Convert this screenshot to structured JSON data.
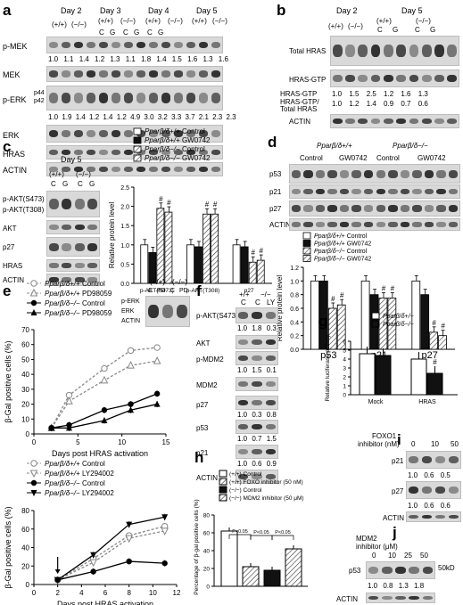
{
  "panels": {
    "a": {
      "label": "a",
      "days": [
        "Day 2",
        "Day 3",
        "Day 4",
        "Day 5"
      ],
      "genotypes": [
        "(+/+)",
        "(−/−)",
        "(+/+)",
        "(−/−)",
        "(+/+)",
        "(−/−)",
        "(+/+)",
        "(−/−)"
      ],
      "lanes": [
        "C",
        "G",
        "C",
        "G",
        "C",
        "G"
      ],
      "rows": [
        "p-MEK",
        "MEK",
        "p-ERK",
        "ERK",
        "HRAS",
        "ACTIN"
      ],
      "perk_sub": [
        "p44",
        "p42"
      ],
      "mek_vals": [
        "1.0",
        "1.1",
        "1.4",
        "1.2",
        "1.3",
        "1.1",
        "1.8",
        "1.4",
        "1.5",
        "1.6",
        "1.3",
        "1.6"
      ],
      "erk_vals": [
        "1.0",
        "1.9",
        "1.4",
        "1.2",
        "1.4",
        "1.2",
        "4.9",
        "3.0",
        "3.2",
        "3.3",
        "3.7",
        "2.1",
        "2.3",
        "2.3"
      ]
    },
    "b": {
      "label": "b",
      "days": [
        "Day 2",
        "Day 5"
      ],
      "genotypes": [
        "(+/+)",
        "(−/−)",
        "(+/+)",
        "(−/−)"
      ],
      "lanes": [
        "C",
        "G",
        "C",
        "G"
      ],
      "rows": [
        "Total HRAS",
        "HRAS-GTP",
        "ACTIN"
      ],
      "r1_label": "HRAS-GTP",
      "r1_vals": [
        "1.0",
        "1.5",
        "2.5",
        "1.2",
        "1.6",
        "1.3"
      ],
      "r2_label": "HRAS-GTP/",
      "r2_label2": "Total HRAS",
      "r2_vals": [
        "1.0",
        "1.2",
        "1.4",
        "0.9",
        "0.7",
        "0.6"
      ]
    },
    "c": {
      "label": "c",
      "day": "Day 5",
      "genotypes": [
        "(+/+)",
        "(−/−)"
      ],
      "lanes": [
        "C",
        "G",
        "C",
        "G"
      ],
      "rows": [
        "p-AKT(S473)",
        "p-AKT(T308)",
        "AKT",
        "p27",
        "HRAS",
        "ACTIN"
      ],
      "legend": [
        {
          "g": "Pparβ/δ+/+",
          "t": "Control"
        },
        {
          "g": "Pparβ/δ+/+",
          "t": "GW0742"
        },
        {
          "g": "Pparβ/δ−/−",
          "t": "Control"
        },
        {
          "g": "Pparβ/δ−/−",
          "t": "GW0742"
        }
      ],
      "ylabel": "Relative protein level",
      "groups": [
        "p-AKT(S473)",
        "p-AKT(T308)",
        "p27"
      ],
      "mark": "#"
    },
    "d": {
      "label": "d",
      "geno1": "Pparβ/δ+/+",
      "geno2": "Pparβ/δ−/−",
      "conds": [
        "Control",
        "GW0742",
        "Control",
        "GW0742"
      ],
      "rows": [
        "p53",
        "p21",
        "p27",
        "ACTIN"
      ],
      "legend": [
        {
          "g": "Pparβ/δ+/+",
          "t": "Control"
        },
        {
          "g": "Pparβ/δ+/+",
          "t": "GW0742"
        },
        {
          "g": "Pparβ/δ−/−",
          "t": "Control"
        },
        {
          "g": "Pparβ/δ−/−",
          "t": "GW0742"
        }
      ],
      "ylabel": "Relative protein level",
      "groups": [
        "p53",
        "p21",
        "p27"
      ],
      "mark": "#"
    },
    "e": {
      "label": "e",
      "ylabel": "β-Gal positive cells (%)",
      "xlabel": "Days post HRAS activation",
      "legend1": [
        {
          "g": "Pparβ/δ+/+",
          "t": "Control"
        },
        {
          "g": "Pparβ/δ+/+",
          "t": "PD98059"
        },
        {
          "g": "Pparβ/δ−/−",
          "t": "Control"
        },
        {
          "g": "Pparβ/δ−/−",
          "t": "PD98059"
        }
      ],
      "legend2": [
        {
          "g": "Pparβ/δ+/+",
          "t": "Control"
        },
        {
          "g": "Pparβ/δ+/+",
          "t": "LY294002"
        },
        {
          "g": "Pparβ/δ−/−",
          "t": "Control"
        },
        {
          "g": "Pparβ/δ−/−",
          "t": "LY294002"
        }
      ],
      "inset": {
        "genos": [
          "(+/+)",
          "(−/−)"
        ],
        "lanes": [
          "C",
          "PD",
          "C",
          "PD"
        ],
        "rows": [
          "p-ERK",
          "ERK",
          "ACTIN"
        ]
      }
    },
    "f": {
      "label": "f",
      "genos": [
        "+/+",
        "−/−"
      ],
      "lanes": [
        "C",
        "C",
        "LY"
      ],
      "rows": [
        "p-AKT(S473)",
        "AKT",
        "p-MDM2",
        "MDM2",
        "p27",
        "p53",
        "p21",
        "ACTIN"
      ],
      "v1": [
        "1.0",
        "1.8",
        "0.3"
      ],
      "v2": [
        "1.0",
        "1.5",
        "0.1"
      ],
      "v3": [
        "1.0",
        "0.3",
        "0.8"
      ],
      "v4": [
        "1.0",
        "0.7",
        "1.5"
      ],
      "v5": [
        "1.0",
        "0.6",
        "0.9"
      ]
    },
    "g": {
      "label": "g",
      "ylabel": "Relative luciferase activity",
      "legend": [
        "Pparβ/δ+/+",
        "Pparβ/δ−/−"
      ],
      "groups": [
        "Mock",
        "HRAS"
      ],
      "mark": "#"
    },
    "h": {
      "label": "h",
      "ylabel": "Percentage of β-gal positive cells (%)",
      "legend": [
        "(+/+) Control",
        "(+/+) FOXO inhibitor (50 nM)",
        "(−/−) Control",
        "(−/−) MDM2 inhibitor (50 μM)"
      ],
      "p": [
        "P<0.05",
        "P<0.05",
        "P<0.05"
      ]
    },
    "i": {
      "label": "i",
      "title": "FOXO1",
      "title2": "inhibitor (nM)",
      "doses": [
        "0",
        "10",
        "50"
      ],
      "rows": [
        "p21",
        "p27",
        "ACTIN"
      ],
      "v1": [
        "1.0",
        "0.6",
        "0.5"
      ],
      "v2": [
        "1.0",
        "0.6",
        "0.6"
      ]
    },
    "j": {
      "label": "j",
      "title": "MDM2",
      "title2": "inhibitor (μM)",
      "doses": [
        "0",
        "10",
        "25",
        "50"
      ],
      "rows": [
        "p53",
        "ACTIN"
      ],
      "v1": [
        "1.0",
        "0.8",
        "1.3",
        "1.8"
      ],
      "kd": "50kD"
    }
  },
  "chart_data": [
    {
      "type": "bar",
      "panel": "c",
      "categories": [
        "p-AKT(S473)",
        "p-AKT(T308)",
        "p27"
      ],
      "series": [
        {
          "name": "Pparβ/δ+/+ Control",
          "values": [
            1.0,
            1.0,
            1.0
          ]
        },
        {
          "name": "Pparβ/δ+/+ GW0742",
          "values": [
            0.8,
            0.95,
            0.95
          ]
        },
        {
          "name": "Pparβ/δ−/− Control",
          "values": [
            1.95,
            1.8,
            0.55
          ]
        },
        {
          "name": "Pparβ/δ−/− GW0742",
          "values": [
            1.85,
            1.8,
            0.6
          ]
        }
      ],
      "ylim": [
        0,
        2.5
      ],
      "yticks": [
        0,
        0.5,
        1.0,
        1.5,
        2.0,
        2.5
      ]
    },
    {
      "type": "bar",
      "panel": "d",
      "categories": [
        "p53",
        "p21",
        "p27"
      ],
      "series": [
        {
          "name": "Pparβ/δ+/+ Control",
          "values": [
            1.0,
            1.0,
            1.0
          ]
        },
        {
          "name": "Pparβ/δ+/+ GW0742",
          "values": [
            1.0,
            0.8,
            0.8
          ]
        },
        {
          "name": "Pparβ/δ−/− Control",
          "values": [
            0.6,
            0.75,
            0.25
          ]
        },
        {
          "name": "Pparβ/δ−/− GW0742",
          "values": [
            0.65,
            0.75,
            0.2
          ]
        }
      ],
      "ylim": [
        0,
        1.2
      ],
      "yticks": [
        0,
        0.2,
        0.4,
        0.6,
        0.8,
        1.0,
        1.2
      ]
    },
    {
      "type": "line",
      "panel": "e-top",
      "x": [
        2,
        4,
        8,
        11,
        14
      ],
      "xticks": [
        0,
        5,
        10,
        15
      ],
      "ylim": [
        0,
        70
      ],
      "yticks": [
        0,
        10,
        20,
        30,
        40,
        50,
        60,
        70
      ],
      "series": [
        {
          "name": "Pparβ/δ+/+ Control",
          "values": [
            4,
            26,
            44,
            56,
            58
          ]
        },
        {
          "name": "Pparβ/δ+/+ PD98059",
          "values": [
            4,
            22,
            36,
            46,
            49
          ]
        },
        {
          "name": "Pparβ/δ−/− Control",
          "values": [
            4,
            6,
            16,
            20,
            27
          ]
        },
        {
          "name": "Pparβ/δ−/− PD98059",
          "values": [
            4,
            4,
            9,
            16,
            20
          ]
        }
      ]
    },
    {
      "type": "line",
      "panel": "e-bottom",
      "x": [
        2,
        5,
        8,
        11
      ],
      "xticks": [
        0,
        2,
        4,
        6,
        8,
        10,
        12
      ],
      "ylim": [
        0,
        80
      ],
      "yticks": [
        0,
        20,
        40,
        60,
        80
      ],
      "series": [
        {
          "name": "Pparβ/δ+/+ Control",
          "values": [
            5,
            28,
            53,
            63
          ]
        },
        {
          "name": "Pparβ/δ+/+ LY294002",
          "values": [
            5,
            24,
            50,
            58
          ]
        },
        {
          "name": "Pparβ/δ−/− Control",
          "values": [
            5,
            14,
            25,
            23
          ]
        },
        {
          "name": "Pparβ/δ−/− LY294002",
          "values": [
            5,
            32,
            65,
            73
          ]
        }
      ]
    },
    {
      "type": "bar",
      "panel": "g",
      "categories": [
        "Mock",
        "HRAS"
      ],
      "series": [
        {
          "name": "Pparβ/δ+/+",
          "values": [
            4.6,
            4.0
          ]
        },
        {
          "name": "Pparβ/δ−/−",
          "values": [
            4.4,
            2.4
          ]
        }
      ],
      "ylim": [
        0,
        6
      ],
      "yticks": [
        0,
        1,
        2,
        3,
        4,
        5,
        6
      ]
    },
    {
      "type": "bar",
      "panel": "h",
      "categories": [
        "(+/+) Control",
        "(+/+) FOXO inhibitor (50 nM)",
        "(−/−) Control",
        "(−/−) MDM2 inhibitor (50 μM)"
      ],
      "values": [
        62,
        22,
        18,
        42
      ],
      "ylim": [
        0,
        80
      ],
      "yticks": [
        0,
        20,
        40,
        60,
        80
      ]
    }
  ]
}
